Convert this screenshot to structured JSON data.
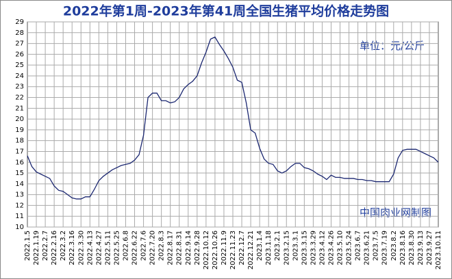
{
  "chart_data": {
    "type": "line",
    "title": "2022年第1周-2023年第41周全国生猪平均价格走势图",
    "annotations": [
      "单位：元/公斤",
      "中国肉业网制图"
    ],
    "categories": [
      "2022.1.5",
      null,
      "2022.1.19",
      null,
      "2022.2.7",
      null,
      "2022.2.16",
      null,
      "2022.3.2",
      null,
      "2022.3.16",
      null,
      "2022.3.30",
      null,
      "2022.4.13",
      null,
      "2022.4.27",
      null,
      "2022.5.11",
      null,
      "2022.5.25",
      null,
      "2022.6.8",
      null,
      "2022.6.22",
      null,
      "2022.7.6",
      null,
      "2022.7.20",
      null,
      "2022.8.3",
      null,
      "2022.8.17",
      null,
      "2022.8.31",
      null,
      "2022.9.14",
      null,
      "2022.9.28",
      null,
      "2022.10.12",
      null,
      "2022.10.26",
      null,
      "2022.11.9",
      null,
      "2022.11.23",
      null,
      "2022.12.7",
      null,
      "2022.12.21",
      null,
      "2023.1.4",
      null,
      "2023.1.18",
      null,
      "2023.2.1",
      null,
      "2023.2.15",
      null,
      "2023.3.1",
      null,
      "2023.3.15",
      null,
      "2023.3.29",
      null,
      "2023.4.12",
      null,
      "2023.4.26",
      null,
      "2023.5.10",
      null,
      "2023.5.24",
      null,
      "2023.6.7",
      null,
      "2023.6.21",
      null,
      "2023.7.5",
      null,
      "2023.7.19",
      null,
      "2023.8.2",
      null,
      "2023.8.16",
      null,
      "2023.8.30",
      null,
      "2023.9.13",
      null,
      "2023.9.27",
      null,
      "2023.10.11"
    ],
    "values": [
      16.6,
      15.6,
      15.1,
      14.9,
      14.7,
      14.5,
      13.8,
      13.4,
      13.3,
      13.0,
      12.7,
      12.6,
      12.6,
      12.8,
      12.8,
      13.5,
      14.3,
      14.7,
      15.0,
      15.3,
      15.5,
      15.7,
      15.8,
      15.9,
      16.2,
      16.7,
      18.5,
      22.0,
      22.4,
      22.4,
      21.7,
      21.7,
      21.5,
      21.6,
      22.0,
      22.8,
      23.2,
      23.5,
      24.0,
      25.2,
      26.2,
      27.4,
      27.6,
      26.9,
      26.3,
      25.6,
      24.8,
      23.6,
      23.4,
      21.5,
      19.0,
      18.7,
      17.3,
      16.3,
      15.9,
      15.8,
      15.2,
      15.0,
      15.2,
      15.6,
      15.9,
      15.9,
      15.5,
      15.4,
      15.2,
      14.9,
      14.7,
      14.4,
      14.8,
      14.6,
      14.6,
      14.5,
      14.5,
      14.5,
      14.4,
      14.4,
      14.3,
      14.3,
      14.2,
      14.2,
      14.2,
      14.2,
      14.9,
      16.4,
      17.1,
      17.2,
      17.2,
      17.2,
      17.0,
      16.8,
      16.6,
      16.4,
      16.0
    ],
    "color": "#1a2670",
    "ylim": [
      10,
      29
    ],
    "yticks": [
      10,
      11,
      12,
      13,
      14,
      15,
      16,
      17,
      18,
      19,
      20,
      21,
      22,
      23,
      24,
      25,
      26,
      27,
      28,
      29
    ],
    "grid": true
  }
}
